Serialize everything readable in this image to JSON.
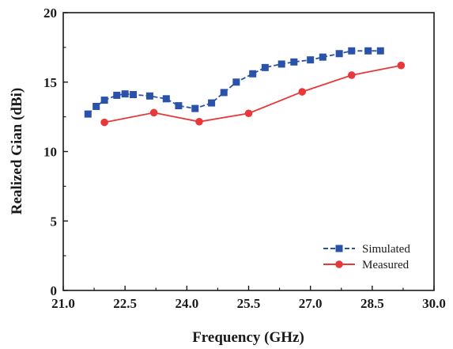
{
  "chart_data": {
    "type": "line",
    "title": "",
    "xlabel": "Frequency (GHz)",
    "ylabel": "Realized Gian (dBi)",
    "xlim": [
      21.0,
      30.0
    ],
    "ylim": [
      0,
      20
    ],
    "xticks": [
      "21.0",
      "22.5",
      "24.0",
      "25.5",
      "27.0",
      "28.5",
      "30.0"
    ],
    "yticks": [
      "0",
      "5",
      "10",
      "15",
      "20"
    ],
    "grid": false,
    "legend_position": "bottom-right",
    "series": [
      {
        "name": "Simulated",
        "color": "#2a52a8",
        "marker": "square",
        "line_style": "dashed",
        "x": [
          21.6,
          21.8,
          22.0,
          22.3,
          22.5,
          22.7,
          23.1,
          23.5,
          23.8,
          24.2,
          24.6,
          24.9,
          25.2,
          25.6,
          25.9,
          26.3,
          26.6,
          27.0,
          27.3,
          27.7,
          28.0,
          28.4,
          28.7
        ],
        "y": [
          12.7,
          13.25,
          13.7,
          14.05,
          14.15,
          14.1,
          14.0,
          13.8,
          13.3,
          13.1,
          13.5,
          14.25,
          15.0,
          15.6,
          16.05,
          16.3,
          16.45,
          16.6,
          16.8,
          17.05,
          17.25,
          17.25,
          17.25
        ]
      },
      {
        "name": "Measured",
        "color": "#e8383a",
        "marker": "circle",
        "line_style": "solid",
        "x": [
          22.0,
          23.2,
          24.3,
          25.5,
          26.8,
          28.0,
          29.2
        ],
        "y": [
          12.1,
          12.8,
          12.15,
          12.75,
          14.3,
          15.5,
          16.2
        ]
      }
    ]
  }
}
